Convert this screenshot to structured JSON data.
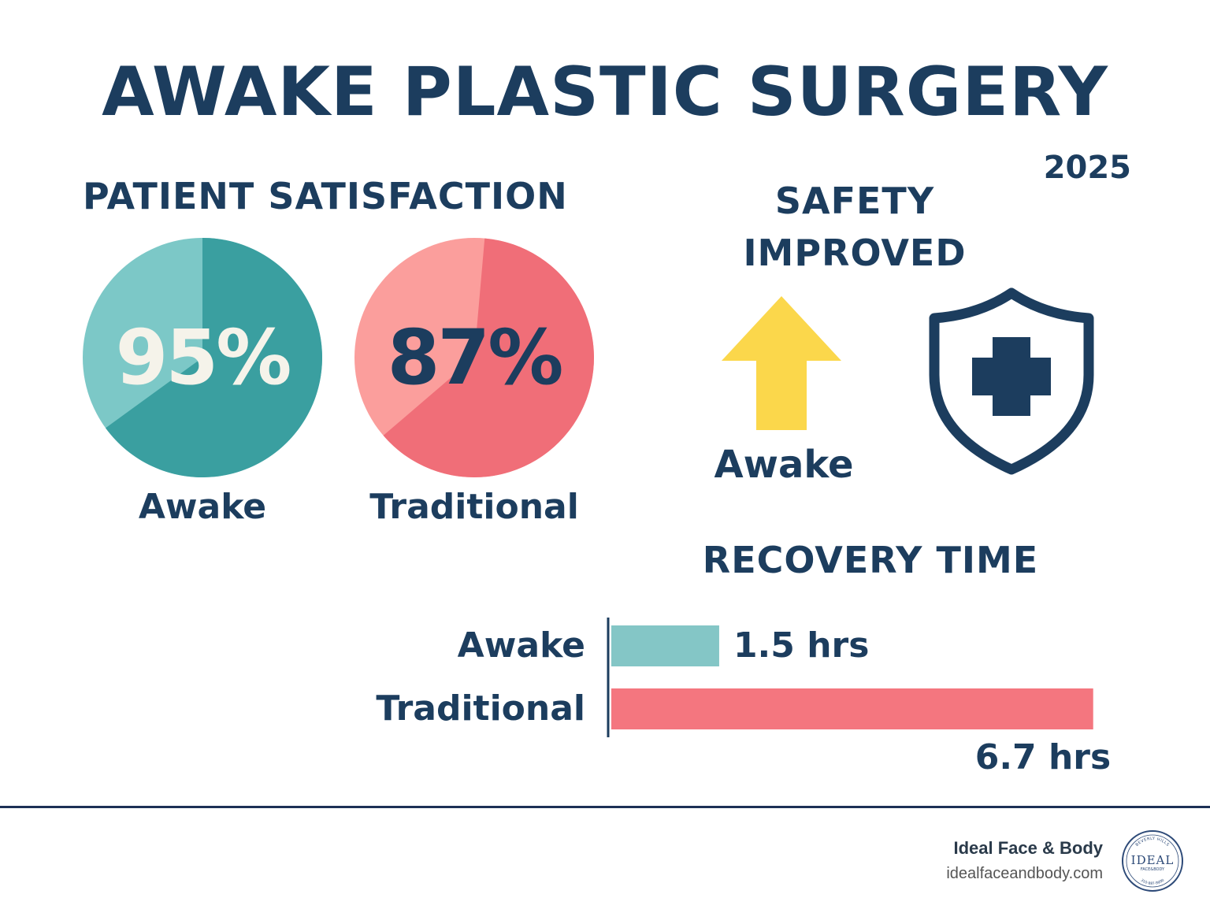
{
  "header": {
    "title": "AWAKE PLASTIC SURGERY",
    "year": "2025"
  },
  "satisfaction": {
    "heading": "PATIENT SATISFACTION"
  },
  "safety": {
    "heading_line1": "SAFETY",
    "heading_line2": "IMPROVED",
    "arrow_label": "Awake",
    "arrow_icon": "up-arrow-icon",
    "shield_icon": "shield-cross-icon"
  },
  "recovery": {
    "heading": "RECOVERY TIME"
  },
  "chart_data": [
    {
      "type": "pie",
      "title": "PATIENT SATISFACTION",
      "slices": [
        {
          "label": "Awake",
          "value": 95,
          "display": "95%",
          "colors": [
            "#7cc8c7",
            "#3a9fa0"
          ],
          "value_color": "#f5f3ea"
        },
        {
          "label": "Traditional",
          "value": 87,
          "display": "87%",
          "colors": [
            "#fb9e9c",
            "#f06e78"
          ],
          "value_color": "#1c3d5e"
        }
      ]
    },
    {
      "type": "bar",
      "orientation": "horizontal",
      "title": "RECOVERY TIME",
      "categories": [
        "Awake",
        "Traditional"
      ],
      "values": [
        1.5,
        6.7
      ],
      "value_labels": [
        "1.5 hrs",
        "6.7 hrs"
      ],
      "unit": "hrs",
      "colors": [
        "#84c6c6",
        "#f4767f"
      ]
    }
  ],
  "footer": {
    "brand_name": "Ideal Face & Body",
    "brand_url": "idealfaceandbody.com",
    "logo": {
      "main": "IDEAL",
      "sub": "FACE&BODY",
      "top": "BEVERLY HILLS",
      "bottom": "310-887-9990"
    }
  },
  "colors": {
    "navy": "#1c3d5e",
    "teal": "#3a9fa0",
    "coral": "#f06e78",
    "yellow": "#fbd74b"
  }
}
